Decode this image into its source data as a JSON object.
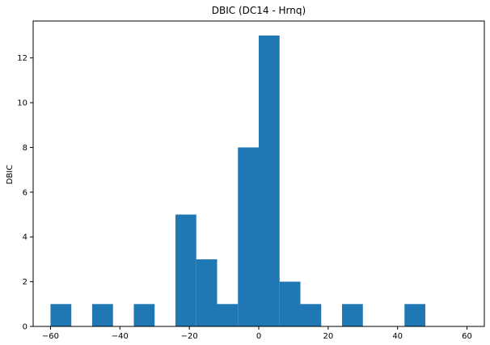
{
  "chart_data": {
    "type": "bar",
    "title": "DBIC (DC14 - Hrnq)",
    "xlabel": "",
    "ylabel": "DBIC",
    "xlim": [
      -65,
      65
    ],
    "ylim": [
      0,
      13.65
    ],
    "xticks": [
      -60,
      -40,
      -20,
      0,
      20,
      40,
      60
    ],
    "yticks": [
      0,
      2,
      4,
      6,
      8,
      10,
      12
    ],
    "grid": false,
    "bin_edges": [
      -60,
      -54,
      -48,
      -42,
      -36,
      -30,
      -24,
      -18,
      -12,
      -6,
      0,
      6,
      12,
      18,
      24,
      30,
      36,
      42,
      48
    ],
    "counts": [
      1,
      0,
      1,
      0,
      1,
      0,
      5,
      3,
      1,
      8,
      13,
      2,
      1,
      0,
      1,
      0,
      0,
      1
    ],
    "bar_color": "#1f77b4"
  }
}
